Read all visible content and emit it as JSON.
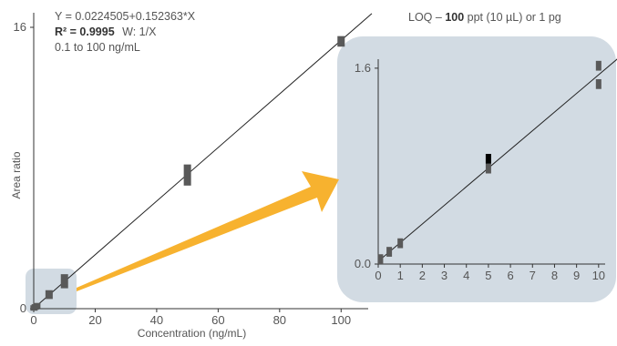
{
  "annotations": {
    "equation": "Y = 0.0224505+0.152363*X",
    "r2_label": "R² = 0.9995",
    "weight": "W: 1/X",
    "range": "0.1 to 100 ng/mL",
    "loq_prefix": "LOQ –",
    "loq_value": "100",
    "loq_suffix": "ppt (10 µL) or 1 pg"
  },
  "colors": {
    "marker": "#595959",
    "marker_highlight": "#000000",
    "fit_line": "#222222",
    "axis": "#333333",
    "zoom_region": "#d2dbe3",
    "arrow": "#f7b22f"
  },
  "chart_data": [
    {
      "type": "scatter",
      "title": "",
      "xlabel": "Concentration (ng/mL)",
      "ylabel": "Area ratio",
      "xlim": [
        0,
        110
      ],
      "ylim": [
        0,
        16
      ],
      "x_ticks": [
        0,
        20,
        40,
        60,
        80,
        100
      ],
      "y_ticks": [
        0,
        16
      ],
      "grid": false,
      "series": [
        {
          "points": [
            {
              "x": 0.1,
              "y": 0.04,
              "err": 0.1
            },
            {
              "x": 0.5,
              "y": 0.1,
              "err": 0.1
            },
            {
              "x": 1,
              "y": 0.17,
              "err": 0.1
            },
            {
              "x": 5,
              "y": 0.8,
              "err": 0.25
            },
            {
              "x": 10,
              "y": 1.56,
              "err": 0.4
            },
            {
              "x": 50,
              "y": 7.6,
              "err": 0.6
            },
            {
              "x": 100,
              "y": 15.2,
              "err": 0.3
            }
          ]
        }
      ],
      "fit": {
        "intercept": 0.0224505,
        "slope": 0.152363,
        "x_range": [
          0,
          110
        ]
      }
    },
    {
      "type": "scatter",
      "title": "",
      "xlabel": "",
      "ylabel": "",
      "xlim": [
        0,
        11
      ],
      "ylim": [
        0,
        1.8
      ],
      "x_ticks": [
        0,
        1,
        2,
        3,
        4,
        5,
        6,
        7,
        8,
        9,
        10
      ],
      "y_ticks": [
        0.0,
        1.6
      ],
      "y_tick_labels": [
        "0.0",
        "1.6"
      ],
      "grid": false,
      "series": [
        {
          "points": [
            {
              "x": 0.1,
              "y": 0.04,
              "err": 0.04
            },
            {
              "x": 0.5,
              "y": 0.1,
              "err": 0.04
            },
            {
              "x": 1,
              "y": 0.17,
              "err": 0.04
            },
            {
              "x": 5,
              "y": 0.78,
              "err": 0.04
            },
            {
              "x": 5,
              "y": 0.86,
              "err": 0.04,
              "highlight": true
            },
            {
              "x": 10,
              "y": 1.47,
              "err": 0.04
            },
            {
              "x": 10,
              "y": 1.62,
              "err": 0.04
            }
          ]
        }
      ],
      "fit": {
        "intercept": 0.0224505,
        "slope": 0.152363,
        "x_range": [
          0,
          11
        ]
      }
    }
  ]
}
